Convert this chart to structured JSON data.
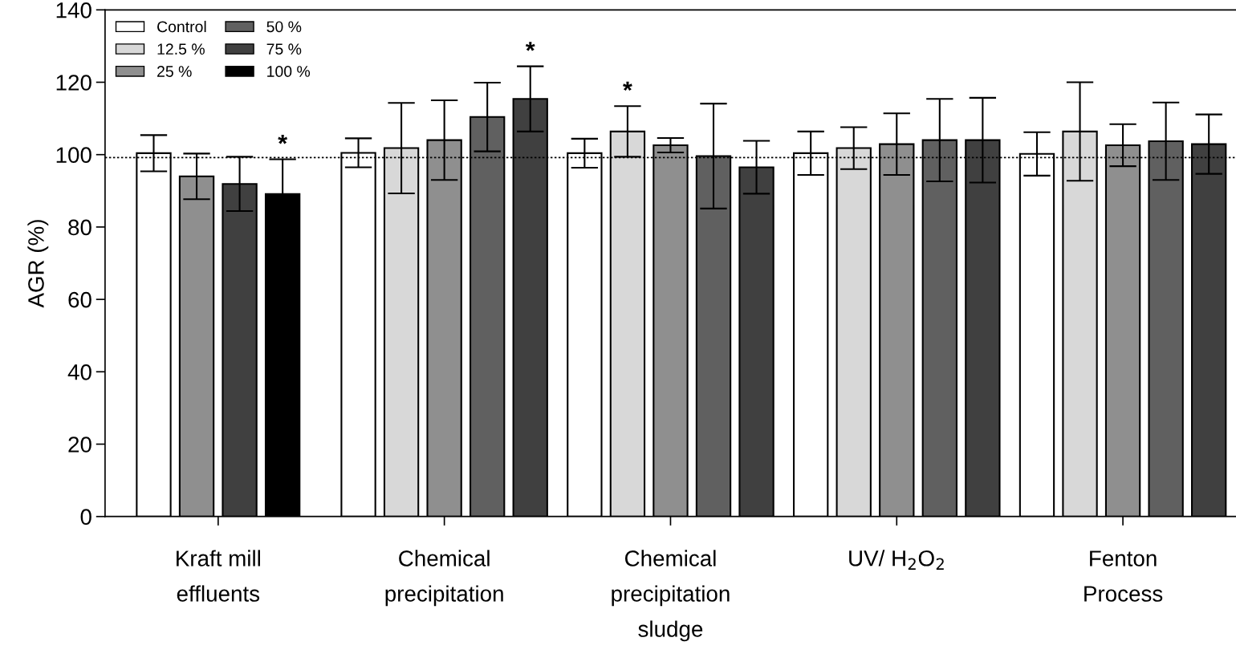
{
  "chart_data": {
    "type": "bar",
    "ylabel": "AGR (%)",
    "categories": [
      "Kraft mill\neffluents",
      "Chemical\nprecipitation",
      "Chemical\nprecipitation\nsludge",
      "UV/ H$_{2}$O$_{2}$",
      "Fenton\nProcess"
    ],
    "series": [
      {
        "name": "Control",
        "color": "#ffffff",
        "values": [
          100.4,
          100.5,
          100.4,
          100.4,
          100.2
        ],
        "errors": [
          5,
          4,
          4,
          6,
          6
        ]
      },
      {
        "name": "12.5 %",
        "color": "#d8d8d8",
        "values": [
          null,
          101.8,
          106.4,
          101.8,
          106.4
        ],
        "errors": [
          null,
          12.5,
          7,
          5.8,
          13.6
        ],
        "value_labels": [
          null,
          null,
          "*",
          null,
          null
        ]
      },
      {
        "name": "25 %",
        "color": "#8f8f8f",
        "values": [
          94.0,
          104.0,
          102.6,
          102.9,
          102.6
        ],
        "errors": [
          6.3,
          11,
          2,
          8.5,
          5.8
        ]
      },
      {
        "name": "50 %",
        "color": "#606060",
        "values": [
          null,
          110.4,
          99.6,
          104.0,
          103.7
        ],
        "errors": [
          null,
          9.5,
          14.5,
          11.4,
          10.7
        ]
      },
      {
        "name": "75 %",
        "color": "#404040",
        "values": [
          91.9,
          115.4,
          96.5,
          104.0,
          102.9
        ],
        "errors": [
          7.5,
          9,
          7.3,
          11.7,
          8.2
        ],
        "value_labels": [
          null,
          "*",
          null,
          null,
          null
        ]
      },
      {
        "name": "100 %",
        "color": "#000000",
        "values": [
          89.1,
          null,
          null,
          null,
          null
        ],
        "errors": [
          9.6,
          null,
          null,
          null,
          null
        ],
        "value_labels": [
          "*",
          null,
          null,
          null,
          null
        ]
      }
    ],
    "ylim": [
      0,
      140
    ],
    "yticks": [
      0,
      20,
      40,
      60,
      80,
      100,
      120,
      140
    ],
    "ref_lines": [
      {
        "axis": "y",
        "value": 99.2,
        "line_style": "dotted",
        "color": "#000000"
      }
    ],
    "grid": false,
    "legend": "top left"
  }
}
